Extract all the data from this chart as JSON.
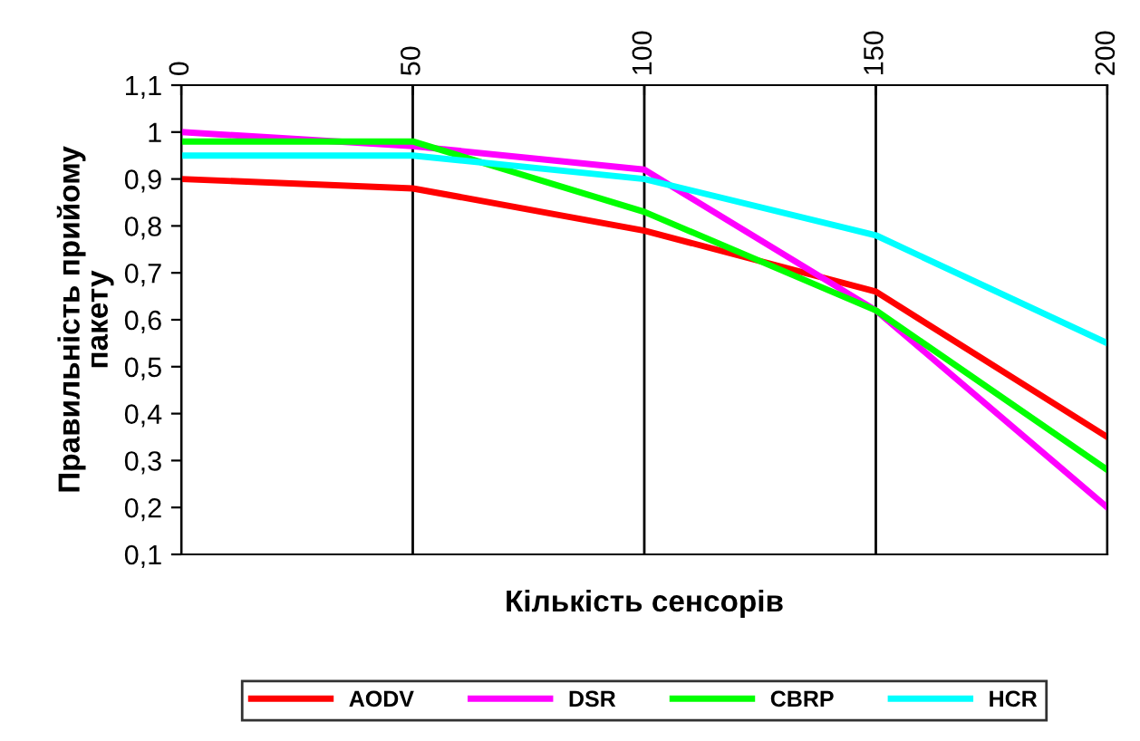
{
  "chart_data": {
    "type": "line",
    "xlabel": "Кількість сенсорів",
    "ylabel": "Правильність прийому\nпакету",
    "x": [
      0,
      50,
      100,
      150,
      200
    ],
    "series": [
      {
        "name": "AODV",
        "color": "#ff0000",
        "values": [
          0.9,
          0.88,
          0.79,
          0.66,
          0.35
        ]
      },
      {
        "name": "DSR",
        "color": "#ff00ff",
        "values": [
          1.0,
          0.97,
          0.92,
          0.62,
          0.2
        ]
      },
      {
        "name": "CBRP",
        "color": "#00ff00",
        "values": [
          0.98,
          0.98,
          0.83,
          0.62,
          0.28
        ]
      },
      {
        "name": "HCR",
        "color": "#00ffff",
        "values": [
          0.95,
          0.95,
          0.9,
          0.78,
          0.55
        ]
      }
    ],
    "xlim": [
      0,
      200
    ],
    "xticks": [
      0,
      50,
      100,
      150,
      200
    ],
    "ylim": [
      0.1,
      1.1
    ],
    "yticks": [
      {
        "value": 0.1,
        "label": "0,1"
      },
      {
        "value": 0.2,
        "label": "0,2"
      },
      {
        "value": 0.3,
        "label": "0,3"
      },
      {
        "value": 0.4,
        "label": "0,4"
      },
      {
        "value": 0.5,
        "label": "0,5"
      },
      {
        "value": 0.6,
        "label": "0,6"
      },
      {
        "value": 0.7,
        "label": "0,7"
      },
      {
        "value": 0.8,
        "label": "0,8"
      },
      {
        "value": 0.9,
        "label": "0,9"
      },
      {
        "value": 1,
        "label": "1"
      },
      {
        "value": 1.1,
        "label": "1,1"
      }
    ],
    "grid": "x",
    "legend": "bottom",
    "marker": "none",
    "line_style": "solid"
  }
}
